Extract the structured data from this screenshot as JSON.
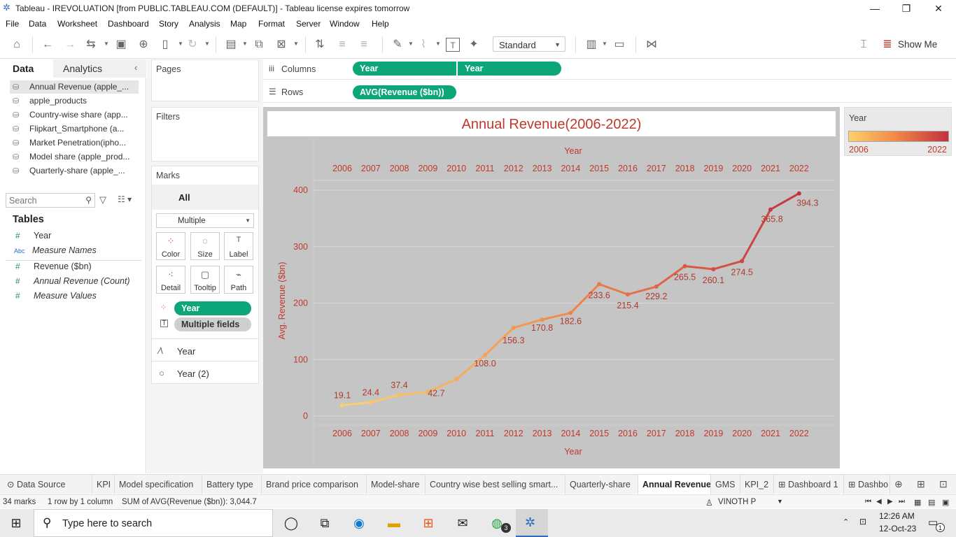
{
  "window": {
    "title": "Tableau - IREVOLUATION [from PUBLIC.TABLEAU.COM (DEFAULT)] - Tableau license expires tomorrow"
  },
  "menu": [
    "File",
    "Data",
    "Worksheet",
    "Dashboard",
    "Story",
    "Analysis",
    "Map",
    "Format",
    "Server",
    "Window",
    "Help"
  ],
  "toolbar": {
    "standard": "Standard",
    "show_me": "Show Me"
  },
  "left": {
    "tab_data": "Data",
    "tab_analytics": "Analytics",
    "datasources": [
      "Annual Revenue (apple_...",
      "apple_products",
      "Country-wise share (app...",
      "Flipkart_Smartphone (a...",
      "Market Penetration(ipho...",
      "Model share (apple_prod...",
      "Quarterly-share (apple_..."
    ],
    "search_placeholder": "Search",
    "tables_header": "Tables",
    "fields": [
      {
        "name": "Year",
        "type": "#"
      },
      {
        "name": "Measure Names",
        "type": "Abc"
      },
      {
        "name": "Revenue ($bn)",
        "type": "#"
      },
      {
        "name": "Annual Revenue (Count)",
        "type": "#"
      },
      {
        "name": "Measure Values",
        "type": "#"
      }
    ]
  },
  "cards": {
    "pages": "Pages",
    "filters": "Filters",
    "marks": "Marks",
    "all": "All",
    "mark_type": "Multiple",
    "buttons": [
      "Color",
      "Size",
      "Label",
      "Detail",
      "Tooltip",
      "Path"
    ],
    "pill_year": "Year",
    "pill_multi": "Multiple fields",
    "sub1": "Year",
    "sub2": "Year (2)"
  },
  "shelves": {
    "columns_label": "Columns",
    "rows_label": "Rows",
    "col_pill1": "Year",
    "col_pill2": "Year",
    "row_pill": "AVG(Revenue ($bn))"
  },
  "legend": {
    "title": "Year",
    "min": "2006",
    "max": "2022"
  },
  "sheet_tabs": [
    "Data Source",
    "KPI",
    "Model specification",
    "Battery type",
    "Brand price comparison",
    "Model-share",
    "Country wise best selling smart...",
    "Quarterly-share",
    "Annual Revenue",
    "GMS",
    "KPI_2",
    "Dashboard 1",
    "Dashbo"
  ],
  "status": {
    "marks": "34 marks",
    "rows": "1 row by 1 column",
    "sum": "SUM of AVG(Revenue ($bn)): 3,044.7",
    "user": "VINOTH P"
  },
  "taskbar": {
    "search": "Type here to search",
    "time": "12:26 AM",
    "date": "12-Oct-23",
    "notif": "1",
    "wa_badge": "3"
  },
  "colors": {
    "accent": "#0ca678",
    "title_red": "#c0392b",
    "low": "#fbd06c",
    "high": "#c23040"
  },
  "chart_data": {
    "type": "line",
    "title": "Annual Revenue(2006-2022)",
    "xlabel": "Year",
    "ylabel": "Avg. Revenue ($bn)",
    "x": [
      2006,
      2007,
      2008,
      2009,
      2010,
      2011,
      2012,
      2013,
      2014,
      2015,
      2016,
      2017,
      2018,
      2019,
      2020,
      2021,
      2022
    ],
    "values": [
      19.1,
      24.4,
      37.4,
      42.7,
      65.2,
      108.0,
      156.3,
      170.8,
      182.6,
      233.6,
      215.4,
      229.2,
      265.5,
      260.1,
      274.5,
      365.8,
      394.3
    ],
    "data_labels": [
      "19.1",
      "24.4",
      "37.4",
      "42.7",
      "",
      "108.0",
      "156.3",
      "170.8",
      "182.6",
      "233.6",
      "215.4",
      "229.2",
      "265.5",
      "260.1",
      "274.5",
      "365.8",
      "394.3"
    ],
    "yticks": [
      0,
      100,
      200,
      300,
      400
    ],
    "ylim": [
      -10,
      420
    ],
    "grid": true,
    "legend": "right"
  }
}
